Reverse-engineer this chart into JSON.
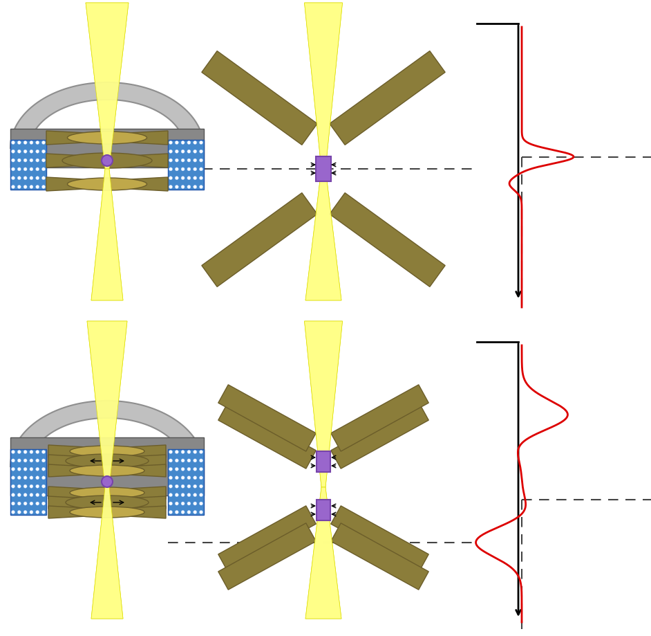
{
  "fig_width": 9.42,
  "fig_height": 9.2,
  "bg_color": "#ffffff",
  "yellow_beam_fill": "#FFFF88",
  "yellow_beam_edge": "#DDDD00",
  "gold_lens": "#8B7D3A",
  "gold_lens_light": "#BFA84A",
  "gray_body": "#888888",
  "gray_body_light": "#BBBBBB",
  "gray_body_dark": "#555555",
  "blue_grid": "#4488CC",
  "blue_grid_dark": "#2255AA",
  "blue_grid_dot": "#ffffff",
  "purple": "#9966CC",
  "purple_dark": "#7744AA",
  "black": "#000000",
  "red_curve": "#DD0000",
  "dashed_color": "#444444",
  "gold_edge": "#6B5D2A"
}
